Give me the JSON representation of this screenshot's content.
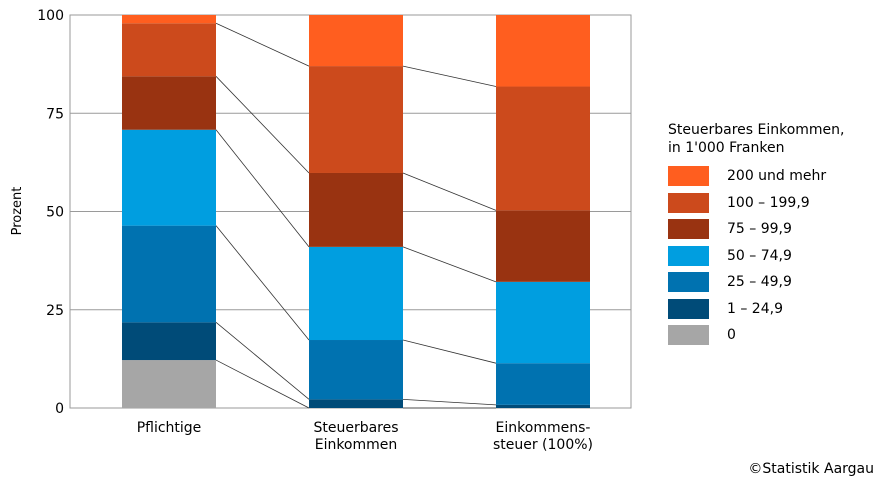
{
  "chart_data": {
    "type": "bar",
    "stacked": true,
    "categories": [
      "Pflichtige",
      "Steuerbares\nEinkommen",
      "Einkommens-\nsteuer (100%)"
    ],
    "ylabel": "Prozent",
    "ylim": [
      0,
      100
    ],
    "yticks": [
      0,
      25,
      50,
      75,
      100
    ],
    "grid": "horizontal",
    "connector_lines": true,
    "legend_title": "Steuerbares Einkommen,\nin 1'000 Franken",
    "legend_position": "right",
    "series": [
      {
        "name": "0",
        "color": "#a6a6a6",
        "values": [
          12.2,
          0,
          0
        ]
      },
      {
        "name": "1 – 24,9",
        "color": "#004b78",
        "values": [
          9.6,
          2.2,
          0.8
        ]
      },
      {
        "name": "25 – 49,9",
        "color": "#0072b0",
        "values": [
          24.6,
          15.1,
          10.6
        ]
      },
      {
        "name": "50 – 74,9",
        "color": "#009ee0",
        "values": [
          24.4,
          23.7,
          20.7
        ]
      },
      {
        "name": "75 – 99,9",
        "color": "#993311",
        "values": [
          13.6,
          18.8,
          18.2
        ]
      },
      {
        "name": "100 – 199,9",
        "color": "#cc4a1c",
        "values": [
          13.5,
          27.2,
          31.5
        ]
      },
      {
        "name": "200 und mehr",
        "color": "#ff5e1f",
        "values": [
          2.1,
          13.0,
          18.2
        ]
      }
    ]
  },
  "credit": "©Statistik Aargau"
}
